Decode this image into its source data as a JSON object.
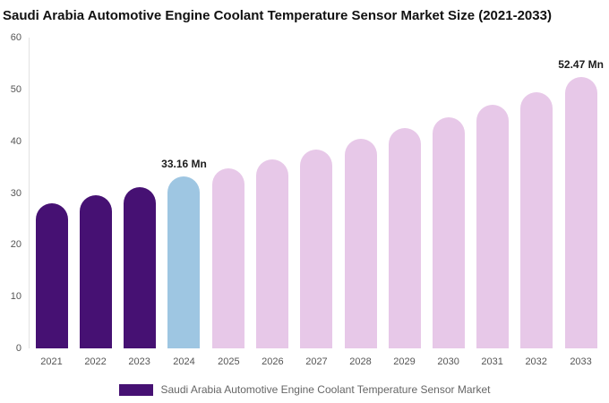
{
  "title": "Saudi Arabia Automotive Engine Coolant Temperature Sensor Market Size (2021-2033)",
  "legend": {
    "label": "Saudi Arabia Automotive Engine Coolant Temperature Sensor Market",
    "swatch_color": "#461173"
  },
  "colors": {
    "historical": "#461173",
    "current_year": "#9EC6E2",
    "forecast": "#E7C8E8"
  },
  "chart_data": {
    "type": "bar",
    "title": "Saudi Arabia Automotive Engine Coolant Temperature Sensor Market Size (2021-2033)",
    "xlabel": "",
    "ylabel": "",
    "ylim": [
      0,
      60
    ],
    "yticks": [
      0,
      10,
      20,
      30,
      40,
      50,
      60
    ],
    "grid": false,
    "legend_position": "bottom",
    "unit": "Mn",
    "categories": [
      "2021",
      "2022",
      "2023",
      "2024",
      "2025",
      "2026",
      "2027",
      "2028",
      "2029",
      "2030",
      "2031",
      "2032",
      "2033"
    ],
    "values": [
      28.0,
      29.6,
      31.1,
      33.16,
      34.7,
      36.5,
      38.4,
      40.4,
      42.5,
      44.7,
      47.0,
      49.5,
      52.47
    ],
    "bar_colors": [
      "#461173",
      "#461173",
      "#461173",
      "#9EC6E2",
      "#E7C8E8",
      "#E7C8E8",
      "#E7C8E8",
      "#E7C8E8",
      "#E7C8E8",
      "#E7C8E8",
      "#E7C8E8",
      "#E7C8E8",
      "#E7C8E8"
    ],
    "data_labels": [
      "",
      "",
      "",
      "33.16 Mn",
      "",
      "",
      "",
      "",
      "",
      "",
      "",
      "",
      "52.47 Mn"
    ]
  }
}
